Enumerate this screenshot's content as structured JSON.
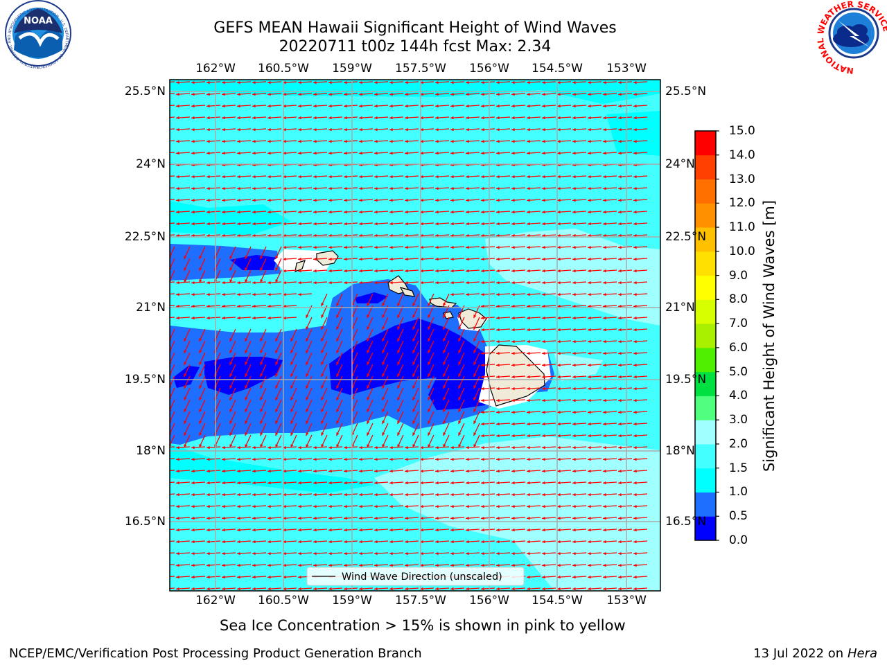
{
  "header": {
    "title_line1": "GEFS MEAN Hawaii Significant Height of Wind Waves",
    "title_line2": "20220711 t00z 144h fcst   Max: 2.34"
  },
  "logos": {
    "left": {
      "name": "NOAA",
      "ring_text": "NATIONAL OCEANIC AND ATMOSPHERIC ADMINISTRATION · U.S. DEPARTMENT OF COMMERCE"
    },
    "right": {
      "ring_text": "NATIONAL WEATHER SERVICE"
    }
  },
  "map": {
    "lon_ticks": [
      "162°W",
      "160.5°W",
      "159°W",
      "157.5°W",
      "156°W",
      "154.5°W",
      "153°W"
    ],
    "lat_ticks": [
      "25.5°N",
      "24°N",
      "22.5°N",
      "21°N",
      "19.5°N",
      "18°N",
      "16.5°N"
    ],
    "legend_label": "Wind Wave Direction (unscaled)",
    "arrow_color": "#ff0000",
    "land_color": "#efebd8",
    "grid_color": "#aaaaaa"
  },
  "colorbar": {
    "label": "Significant Height of Wind Waves [m]",
    "ticks": [
      "0.0",
      "0.5",
      "1.0",
      "1.5",
      "2.0",
      "3.0",
      "4.0",
      "5.0",
      "6.0",
      "7.0",
      "8.0",
      "9.0",
      "10.0",
      "11.0",
      "12.0",
      "13.0",
      "14.0",
      "15.0"
    ],
    "colors": [
      "#0000ff",
      "#1e6eff",
      "#00ffff",
      "#44ffff",
      "#a0ffff",
      "#50ff80",
      "#00e040",
      "#50ee00",
      "#a8f000",
      "#d8ff00",
      "#ffff00",
      "#ffe000",
      "#ffc000",
      "#ff9000",
      "#ff7000",
      "#ff4000",
      "#ff0000"
    ]
  },
  "note": "Sea Ice Concentration > 15% is shown in pink to yellow",
  "footer": {
    "left": "NCEP/EMC/Verification Post Processing Product Generation Branch",
    "right_date": "13 Jul 2022 on ",
    "right_host": "Hera"
  }
}
